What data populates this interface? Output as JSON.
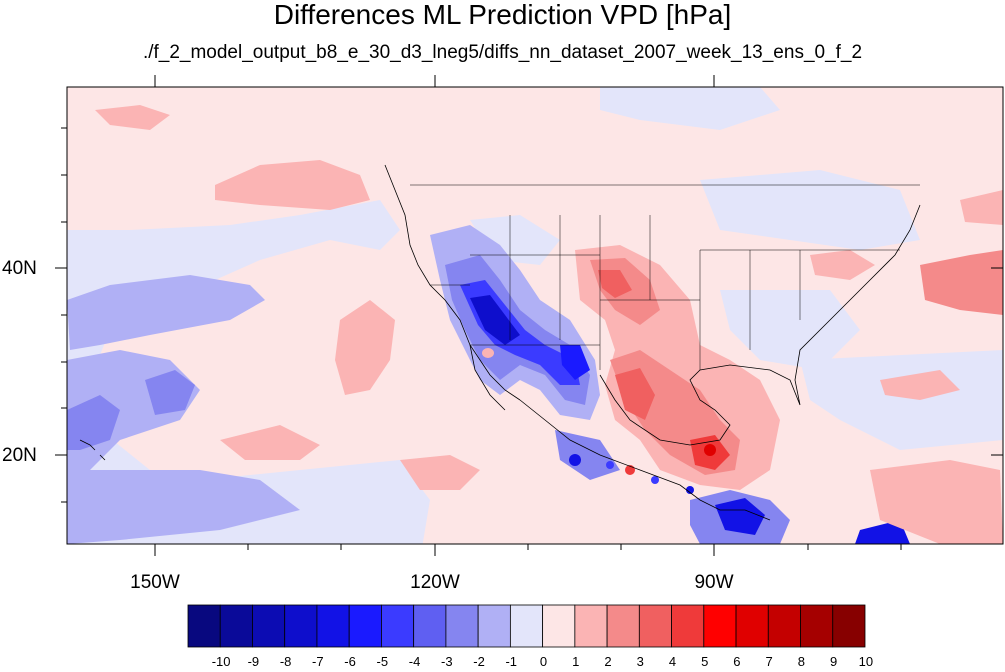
{
  "title": "Differences ML Prediction VPD [hPa]",
  "subtitle": "./f_2_model_output_b8_e_30_d3_lneg5/diffs_nn_dataset_2007_week_13_ens_0_f_2",
  "lat_labels": [
    "40N",
    "20N"
  ],
  "lon_labels": [
    "150W",
    "120W",
    "90W"
  ],
  "colorbar": {
    "labels": [
      "-10",
      "-9",
      "-8",
      "-7",
      "-6",
      "-5",
      "-4",
      "-3",
      "-2",
      "-1",
      "0",
      "1",
      "2",
      "3",
      "4",
      "5",
      "6",
      "7",
      "8",
      "9",
      "10"
    ],
    "colors": [
      "#08087f",
      "#0a0a99",
      "#0c0cb3",
      "#0e0ecc",
      "#1212e6",
      "#1a1aff",
      "#3b3bff",
      "#5f5ff2",
      "#8585f0",
      "#b0b0f5",
      "#e3e5fa",
      "#fde6e6",
      "#fbb4b4",
      "#f48a8a",
      "#f06060",
      "#ef3a3a",
      "#ff0000",
      "#e00000",
      "#c40000",
      "#a50000",
      "#870000"
    ]
  }
}
